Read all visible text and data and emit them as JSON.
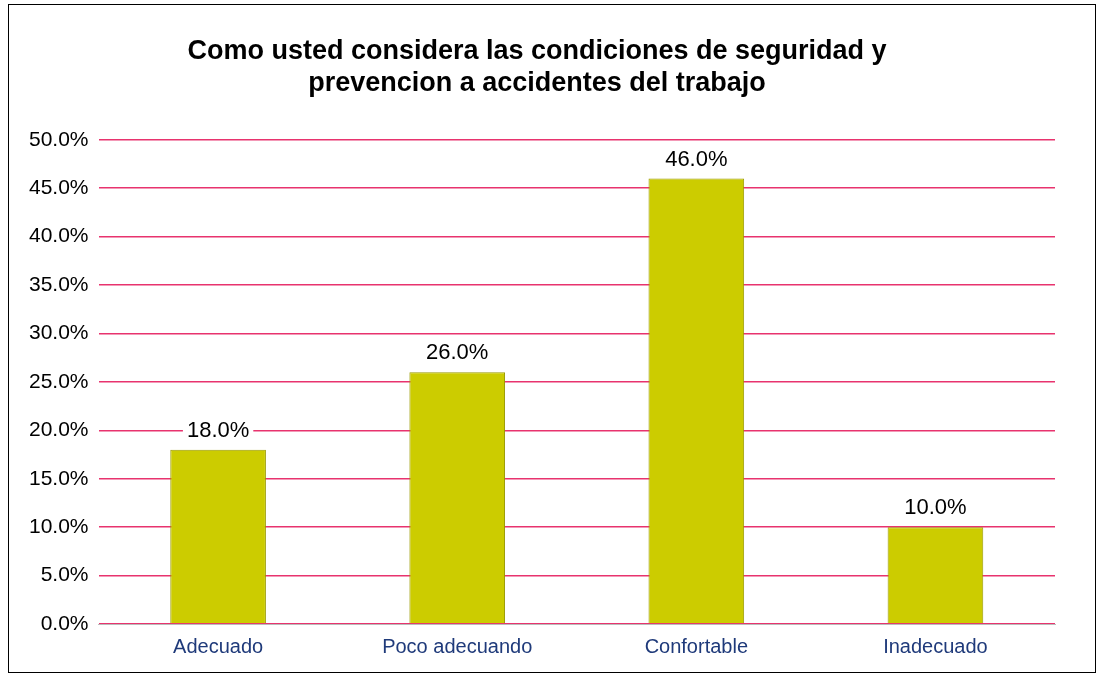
{
  "chart_data": {
    "type": "bar",
    "title": "Como usted considera las condiciones de seguridad y prevencion a accidentes del trabajo",
    "categories": [
      "Adecuado",
      "Poco adecuando",
      "Confortable",
      "Inadecuado"
    ],
    "values": [
      18,
      26,
      46,
      10
    ],
    "color": "#cccc00",
    "value_labels": [
      "18.0%",
      "26.0%",
      "46.0%",
      "10.0%"
    ],
    "ylim": [
      0,
      50
    ],
    "yticks": [
      {
        "value": 0,
        "label": "0.0%"
      },
      {
        "value": 5,
        "label": "5.0%"
      },
      {
        "value": 10,
        "label": "10.0%"
      },
      {
        "value": 15,
        "label": "15.0%"
      },
      {
        "value": 20,
        "label": "20.0%"
      },
      {
        "value": 25,
        "label": "25.0%"
      },
      {
        "value": 30,
        "label": "30.0%"
      },
      {
        "value": 35,
        "label": "35.0%"
      },
      {
        "value": 40,
        "label": "40.0%"
      },
      {
        "value": 45,
        "label": "45.0%"
      },
      {
        "value": 50,
        "label": "50.0%"
      }
    ],
    "grid": "y",
    "legend": false
  }
}
